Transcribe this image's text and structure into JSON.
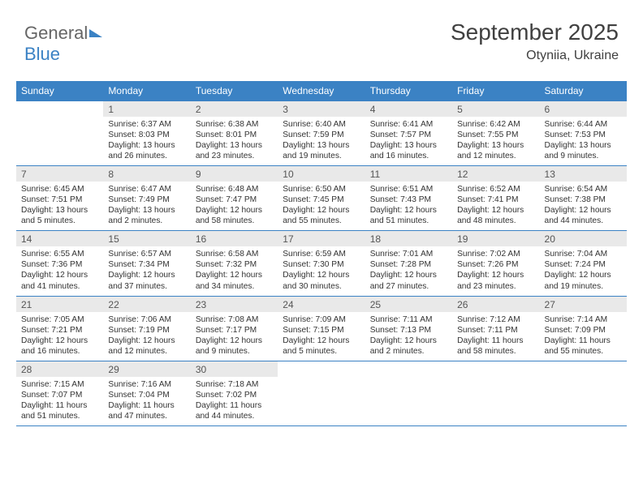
{
  "brand": {
    "part1": "General",
    "part2": "Blue"
  },
  "title": "September 2025",
  "location": "Otyniia, Ukraine",
  "colors": {
    "header_bg": "#3b82c4",
    "header_fg": "#ffffff",
    "daynum_bg": "#e9e9e9",
    "text": "#333333",
    "border": "#3b82c4"
  },
  "typography": {
    "title_fontsize": 28,
    "location_fontsize": 16,
    "header_fontsize": 12,
    "daynum_fontsize": 12,
    "body_fontsize": 10.2
  },
  "days_of_week": [
    "Sunday",
    "Monday",
    "Tuesday",
    "Wednesday",
    "Thursday",
    "Friday",
    "Saturday"
  ],
  "weeks": [
    [
      {
        "n": "",
        "sr": "",
        "ss": "",
        "dl": "",
        "empty": true
      },
      {
        "n": "1",
        "sr": "6:37 AM",
        "ss": "8:03 PM",
        "dl": "13 hours and 26 minutes."
      },
      {
        "n": "2",
        "sr": "6:38 AM",
        "ss": "8:01 PM",
        "dl": "13 hours and 23 minutes."
      },
      {
        "n": "3",
        "sr": "6:40 AM",
        "ss": "7:59 PM",
        "dl": "13 hours and 19 minutes."
      },
      {
        "n": "4",
        "sr": "6:41 AM",
        "ss": "7:57 PM",
        "dl": "13 hours and 16 minutes."
      },
      {
        "n": "5",
        "sr": "6:42 AM",
        "ss": "7:55 PM",
        "dl": "13 hours and 12 minutes."
      },
      {
        "n": "6",
        "sr": "6:44 AM",
        "ss": "7:53 PM",
        "dl": "13 hours and 9 minutes."
      }
    ],
    [
      {
        "n": "7",
        "sr": "6:45 AM",
        "ss": "7:51 PM",
        "dl": "13 hours and 5 minutes."
      },
      {
        "n": "8",
        "sr": "6:47 AM",
        "ss": "7:49 PM",
        "dl": "13 hours and 2 minutes."
      },
      {
        "n": "9",
        "sr": "6:48 AM",
        "ss": "7:47 PM",
        "dl": "12 hours and 58 minutes."
      },
      {
        "n": "10",
        "sr": "6:50 AM",
        "ss": "7:45 PM",
        "dl": "12 hours and 55 minutes."
      },
      {
        "n": "11",
        "sr": "6:51 AM",
        "ss": "7:43 PM",
        "dl": "12 hours and 51 minutes."
      },
      {
        "n": "12",
        "sr": "6:52 AM",
        "ss": "7:41 PM",
        "dl": "12 hours and 48 minutes."
      },
      {
        "n": "13",
        "sr": "6:54 AM",
        "ss": "7:38 PM",
        "dl": "12 hours and 44 minutes."
      }
    ],
    [
      {
        "n": "14",
        "sr": "6:55 AM",
        "ss": "7:36 PM",
        "dl": "12 hours and 41 minutes."
      },
      {
        "n": "15",
        "sr": "6:57 AM",
        "ss": "7:34 PM",
        "dl": "12 hours and 37 minutes."
      },
      {
        "n": "16",
        "sr": "6:58 AM",
        "ss": "7:32 PM",
        "dl": "12 hours and 34 minutes."
      },
      {
        "n": "17",
        "sr": "6:59 AM",
        "ss": "7:30 PM",
        "dl": "12 hours and 30 minutes."
      },
      {
        "n": "18",
        "sr": "7:01 AM",
        "ss": "7:28 PM",
        "dl": "12 hours and 27 minutes."
      },
      {
        "n": "19",
        "sr": "7:02 AM",
        "ss": "7:26 PM",
        "dl": "12 hours and 23 minutes."
      },
      {
        "n": "20",
        "sr": "7:04 AM",
        "ss": "7:24 PM",
        "dl": "12 hours and 19 minutes."
      }
    ],
    [
      {
        "n": "21",
        "sr": "7:05 AM",
        "ss": "7:21 PM",
        "dl": "12 hours and 16 minutes."
      },
      {
        "n": "22",
        "sr": "7:06 AM",
        "ss": "7:19 PM",
        "dl": "12 hours and 12 minutes."
      },
      {
        "n": "23",
        "sr": "7:08 AM",
        "ss": "7:17 PM",
        "dl": "12 hours and 9 minutes."
      },
      {
        "n": "24",
        "sr": "7:09 AM",
        "ss": "7:15 PM",
        "dl": "12 hours and 5 minutes."
      },
      {
        "n": "25",
        "sr": "7:11 AM",
        "ss": "7:13 PM",
        "dl": "12 hours and 2 minutes."
      },
      {
        "n": "26",
        "sr": "7:12 AM",
        "ss": "7:11 PM",
        "dl": "11 hours and 58 minutes."
      },
      {
        "n": "27",
        "sr": "7:14 AM",
        "ss": "7:09 PM",
        "dl": "11 hours and 55 minutes."
      }
    ],
    [
      {
        "n": "28",
        "sr": "7:15 AM",
        "ss": "7:07 PM",
        "dl": "11 hours and 51 minutes."
      },
      {
        "n": "29",
        "sr": "7:16 AM",
        "ss": "7:04 PM",
        "dl": "11 hours and 47 minutes."
      },
      {
        "n": "30",
        "sr": "7:18 AM",
        "ss": "7:02 PM",
        "dl": "11 hours and 44 minutes."
      },
      {
        "n": "",
        "sr": "",
        "ss": "",
        "dl": "",
        "empty": true
      },
      {
        "n": "",
        "sr": "",
        "ss": "",
        "dl": "",
        "empty": true
      },
      {
        "n": "",
        "sr": "",
        "ss": "",
        "dl": "",
        "empty": true
      },
      {
        "n": "",
        "sr": "",
        "ss": "",
        "dl": "",
        "empty": true
      }
    ]
  ],
  "labels": {
    "sunrise": "Sunrise:",
    "sunset": "Sunset:",
    "daylight": "Daylight:"
  }
}
